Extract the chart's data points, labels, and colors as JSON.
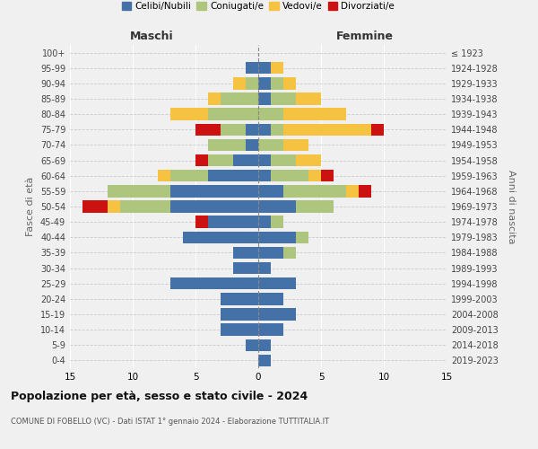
{
  "age_groups": [
    "0-4",
    "5-9",
    "10-14",
    "15-19",
    "20-24",
    "25-29",
    "30-34",
    "35-39",
    "40-44",
    "45-49",
    "50-54",
    "55-59",
    "60-64",
    "65-69",
    "70-74",
    "75-79",
    "80-84",
    "85-89",
    "90-94",
    "95-99",
    "100+"
  ],
  "birth_years": [
    "2019-2023",
    "2014-2018",
    "2009-2013",
    "2004-2008",
    "1999-2003",
    "1994-1998",
    "1989-1993",
    "1984-1988",
    "1979-1983",
    "1974-1978",
    "1969-1973",
    "1964-1968",
    "1959-1963",
    "1954-1958",
    "1949-1953",
    "1944-1948",
    "1939-1943",
    "1934-1938",
    "1929-1933",
    "1924-1928",
    "≤ 1923"
  ],
  "male": {
    "celibi": [
      0,
      1,
      3,
      3,
      3,
      7,
      2,
      2,
      6,
      4,
      7,
      7,
      4,
      2,
      1,
      1,
      0,
      0,
      0,
      1,
      0
    ],
    "coniugati": [
      0,
      0,
      0,
      0,
      0,
      0,
      0,
      0,
      0,
      0,
      4,
      5,
      3,
      2,
      3,
      2,
      4,
      3,
      1,
      0,
      0
    ],
    "vedovi": [
      0,
      0,
      0,
      0,
      0,
      0,
      0,
      0,
      0,
      0,
      1,
      0,
      1,
      0,
      0,
      0,
      3,
      1,
      1,
      0,
      0
    ],
    "divorziati": [
      0,
      0,
      0,
      0,
      0,
      0,
      0,
      0,
      0,
      1,
      2,
      0,
      0,
      1,
      0,
      2,
      0,
      0,
      0,
      0,
      0
    ]
  },
  "female": {
    "nubili": [
      1,
      1,
      2,
      3,
      2,
      3,
      1,
      2,
      3,
      1,
      3,
      2,
      1,
      1,
      0,
      1,
      0,
      1,
      1,
      1,
      0
    ],
    "coniugate": [
      0,
      0,
      0,
      0,
      0,
      0,
      0,
      1,
      1,
      1,
      3,
      5,
      3,
      2,
      2,
      1,
      2,
      2,
      1,
      0,
      0
    ],
    "vedove": [
      0,
      0,
      0,
      0,
      0,
      0,
      0,
      0,
      0,
      0,
      0,
      1,
      1,
      2,
      2,
      7,
      5,
      2,
      1,
      1,
      0
    ],
    "divorziate": [
      0,
      0,
      0,
      0,
      0,
      0,
      0,
      0,
      0,
      0,
      0,
      1,
      1,
      0,
      0,
      1,
      0,
      0,
      0,
      0,
      0
    ]
  },
  "colors": {
    "celibi": "#4472a8",
    "coniugati": "#adc57c",
    "vedovi": "#f5c242",
    "divorziati": "#cc1111"
  },
  "xlim": 15,
  "title": "Popolazione per età, sesso e stato civile - 2024",
  "subtitle": "COMUNE DI FOBELLO (VC) - Dati ISTAT 1° gennaio 2024 - Elaborazione TUTTITALIA.IT",
  "ylabel": "Fasce di età",
  "right_ylabel": "Anni di nascita",
  "legend_labels": [
    "Celibi/Nubili",
    "Coniugati/e",
    "Vedovi/e",
    "Divorziati/e"
  ],
  "maschi_label": "Maschi",
  "femmine_label": "Femmine",
  "background_color": "#f0f0f0"
}
